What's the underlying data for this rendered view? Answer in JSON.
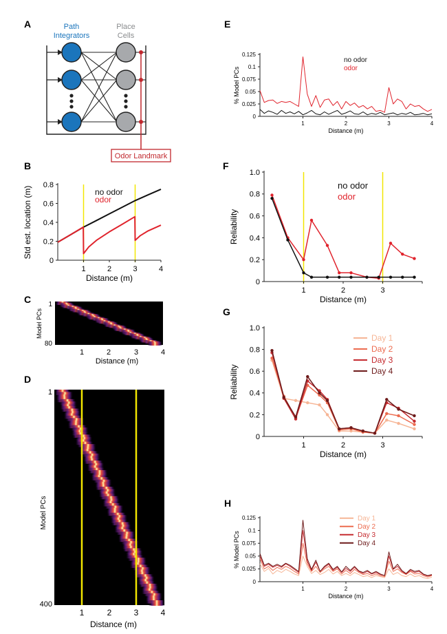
{
  "colors": {
    "black": "#111111",
    "red": "#e0232c",
    "dark_red": "#c1272d",
    "blue": "#1b75bc",
    "gray": "#a7a9ac",
    "yellow": "#f2e600",
    "day1": "#f6b595",
    "day2": "#ec6b4f",
    "day3": "#c52a2f",
    "day4": "#6d1a1a"
  },
  "panel_A": {
    "letter": "A",
    "path_label_1": "Path",
    "path_label_2": "Integrators",
    "place_label_1": "Place",
    "place_label_2": "Cells",
    "odor_box": "Odor Landmark"
  },
  "panel_C_meta": {
    "letter": "C",
    "xlabel": "Distance (m)",
    "ylabel": "Model PCs",
    "ytop": "1",
    "ybottom": "80",
    "ticks": [
      "1",
      "2",
      "3",
      "4"
    ]
  },
  "panel_D_meta": {
    "letter": "D",
    "xlabel": "Distance (m)",
    "ylabel": "Model PCs",
    "ytop": "1",
    "ybottom": "400",
    "ticks": [
      "1",
      "2",
      "3",
      "4"
    ]
  },
  "chart_data": [
    {
      "panel": "B",
      "type": "line",
      "xlabel": "Distance (m)",
      "ylabel": "Std est. location (m)",
      "xlim": [
        0,
        4
      ],
      "ylim": [
        0,
        0.8
      ],
      "xticks": [
        1,
        2,
        3,
        4
      ],
      "yticks": [
        0,
        0.2,
        0.4,
        0.6,
        0.8
      ],
      "vlines": [
        1,
        3
      ],
      "legend": [
        "no odor",
        "odor"
      ],
      "series": [
        {
          "name": "no odor",
          "color": "black",
          "x": [
            0,
            0.5,
            1,
            1.5,
            2,
            2.5,
            3,
            3.5,
            4
          ],
          "y": [
            0.19,
            0.27,
            0.35,
            0.42,
            0.49,
            0.56,
            0.63,
            0.69,
            0.75
          ]
        },
        {
          "name": "odor",
          "color": "red",
          "x": [
            0,
            0.5,
            0.99,
            1.0,
            1.2,
            1.5,
            2.0,
            2.5,
            2.99,
            3.0,
            3.2,
            3.5,
            4.0
          ],
          "y": [
            0.19,
            0.27,
            0.35,
            0.07,
            0.14,
            0.21,
            0.3,
            0.38,
            0.46,
            0.21,
            0.26,
            0.31,
            0.37
          ]
        }
      ]
    },
    {
      "panel": "E",
      "type": "line",
      "xlabel": "Distance (m)",
      "ylabel": "% Model PCs",
      "xlim": [
        0,
        4
      ],
      "ylim": [
        0,
        0.125
      ],
      "xticks": [
        1,
        2,
        3,
        4
      ],
      "yticks": [
        0,
        0.025,
        0.05,
        0.075,
        0.1,
        0.125
      ],
      "legend": [
        "no odor",
        "odor"
      ],
      "series": [
        {
          "name": "no odor",
          "color": "black",
          "x": [
            0,
            0.1,
            0.2,
            0.3,
            0.4,
            0.5,
            0.6,
            0.7,
            0.8,
            0.9,
            1.0,
            1.1,
            1.2,
            1.3,
            1.4,
            1.5,
            1.6,
            1.7,
            1.8,
            1.9,
            2.0,
            2.1,
            2.2,
            2.3,
            2.4,
            2.5,
            2.6,
            2.7,
            2.8,
            2.9,
            3.0,
            3.1,
            3.2,
            3.3,
            3.4,
            3.5,
            3.6,
            3.7,
            3.8,
            3.9,
            4.0
          ],
          "y": [
            0.014,
            0.006,
            0.011,
            0.008,
            0.004,
            0.012,
            0.006,
            0.009,
            0.005,
            0.01,
            0.003,
            0.007,
            0.012,
            0.005,
            0.003,
            0.009,
            0.004,
            0.008,
            0.012,
            0.004,
            0.007,
            0.011,
            0.005,
            0.004,
            0.009,
            0.003,
            0.006,
            0.004,
            0.008,
            0.003,
            0.005,
            0.007,
            0.003,
            0.006,
            0.004,
            0.008,
            0.003,
            0.004,
            0.006,
            0.003,
            0.005
          ]
        },
        {
          "name": "odor",
          "color": "red",
          "x": [
            0,
            0.1,
            0.2,
            0.3,
            0.4,
            0.5,
            0.6,
            0.7,
            0.8,
            0.9,
            1.0,
            1.1,
            1.2,
            1.3,
            1.4,
            1.5,
            1.6,
            1.7,
            1.8,
            1.9,
            2.0,
            2.1,
            2.2,
            2.3,
            2.4,
            2.5,
            2.6,
            2.7,
            2.8,
            2.9,
            3.0,
            3.1,
            3.2,
            3.3,
            3.4,
            3.5,
            3.6,
            3.7,
            3.8,
            3.9,
            4.0
          ],
          "y": [
            0.052,
            0.028,
            0.032,
            0.033,
            0.026,
            0.03,
            0.028,
            0.03,
            0.025,
            0.02,
            0.12,
            0.045,
            0.02,
            0.042,
            0.018,
            0.033,
            0.035,
            0.022,
            0.03,
            0.015,
            0.03,
            0.022,
            0.027,
            0.018,
            0.022,
            0.015,
            0.02,
            0.01,
            0.012,
            0.008,
            0.058,
            0.025,
            0.035,
            0.03,
            0.015,
            0.025,
            0.02,
            0.022,
            0.015,
            0.01,
            0.014
          ]
        }
      ]
    },
    {
      "panel": "F",
      "type": "line",
      "xlabel": "Distance (m)",
      "ylabel": "Reliability",
      "xlim": [
        0,
        4
      ],
      "ylim": [
        0,
        1
      ],
      "xticks": [
        1,
        2,
        3,
        4
      ],
      "xtick_labels": [
        "1",
        "2",
        "3",
        ""
      ],
      "yticks": [
        0,
        0.2,
        0.4,
        0.6,
        0.8,
        1.0
      ],
      "ytick_labels": [
        "0",
        "0.2",
        "0.4",
        "0.6",
        "0.8",
        "1.0"
      ],
      "vlines": [
        1,
        3
      ],
      "legend": [
        "no odor",
        "odor"
      ],
      "series": [
        {
          "name": "odor",
          "color": "red",
          "markers": true,
          "x": [
            0.2,
            0.6,
            1.0,
            1.2,
            1.6,
            1.9,
            2.2,
            2.6,
            2.9,
            3.2,
            3.5,
            3.8
          ],
          "y": [
            0.79,
            0.4,
            0.2,
            0.56,
            0.33,
            0.08,
            0.08,
            0.04,
            0.03,
            0.35,
            0.25,
            0.21
          ]
        },
        {
          "name": "no odor",
          "color": "black",
          "markers": true,
          "x": [
            0.2,
            0.6,
            1.0,
            1.2,
            1.6,
            1.9,
            2.2,
            2.6,
            2.9,
            3.2,
            3.5,
            3.8
          ],
          "y": [
            0.76,
            0.38,
            0.08,
            0.04,
            0.04,
            0.04,
            0.04,
            0.04,
            0.04,
            0.04,
            0.04,
            0.04
          ]
        }
      ]
    },
    {
      "panel": "G",
      "type": "line",
      "xlabel": "Distance (m)",
      "ylabel": "Reliability",
      "xlim": [
        0,
        4
      ],
      "ylim": [
        0,
        1
      ],
      "xticks": [
        1,
        2,
        3,
        4
      ],
      "xtick_labels": [
        "1",
        "2",
        "3",
        ""
      ],
      "yticks": [
        0,
        0.2,
        0.4,
        0.6,
        0.8,
        1.0
      ],
      "ytick_labels": [
        "0",
        "0.2",
        "0.4",
        "0.6",
        "0.8",
        "1.0"
      ],
      "legend": [
        "Day 1",
        "Day 2",
        "Day 3",
        "Day 4"
      ],
      "series": [
        {
          "name": "Day 1",
          "color": "day1",
          "markers": true,
          "x": [
            0.2,
            0.5,
            0.8,
            1.1,
            1.4,
            1.6,
            1.9,
            2.2,
            2.5,
            2.8,
            3.1,
            3.4,
            3.8
          ],
          "y": [
            0.7,
            0.35,
            0.33,
            0.31,
            0.29,
            0.2,
            0.05,
            0.05,
            0.04,
            0.03,
            0.15,
            0.12,
            0.07
          ]
        },
        {
          "name": "Day 2",
          "color": "day2",
          "markers": true,
          "x": [
            0.2,
            0.5,
            0.8,
            1.1,
            1.4,
            1.6,
            1.9,
            2.2,
            2.5,
            2.8,
            3.1,
            3.4,
            3.8
          ],
          "y": [
            0.72,
            0.37,
            0.17,
            0.47,
            0.38,
            0.31,
            0.06,
            0.07,
            0.04,
            0.03,
            0.21,
            0.19,
            0.11
          ]
        },
        {
          "name": "Day 3",
          "color": "day3",
          "markers": true,
          "x": [
            0.2,
            0.5,
            0.8,
            1.1,
            1.4,
            1.6,
            1.9,
            2.2,
            2.5,
            2.8,
            3.1,
            3.4,
            3.8
          ],
          "y": [
            0.77,
            0.35,
            0.16,
            0.51,
            0.42,
            0.34,
            0.07,
            0.08,
            0.05,
            0.03,
            0.31,
            0.26,
            0.14
          ]
        },
        {
          "name": "Day 4",
          "color": "day4",
          "markers": true,
          "x": [
            0.2,
            0.5,
            0.8,
            1.1,
            1.4,
            1.6,
            1.9,
            2.2,
            2.5,
            2.8,
            3.1,
            3.4,
            3.8
          ],
          "y": [
            0.79,
            0.36,
            0.18,
            0.55,
            0.4,
            0.33,
            0.07,
            0.08,
            0.05,
            0.03,
            0.34,
            0.25,
            0.19
          ]
        }
      ]
    },
    {
      "panel": "H",
      "type": "line",
      "xlabel": "Distance (m)",
      "ylabel": "% Model PCs",
      "xlim": [
        0,
        4
      ],
      "ylim": [
        0,
        0.125
      ],
      "xticks": [
        1,
        2,
        3,
        4
      ],
      "yticks": [
        0,
        0.025,
        0.05,
        0.075,
        0.1,
        0.125
      ],
      "legend": [
        "Day 1",
        "Day 2",
        "Day 3",
        "Day 4"
      ],
      "series": [
        {
          "name": "Day 1",
          "color": "day1",
          "x": [
            0,
            0.1,
            0.2,
            0.3,
            0.4,
            0.5,
            0.6,
            0.7,
            0.8,
            0.9,
            1.0,
            1.1,
            1.2,
            1.3,
            1.4,
            1.5,
            1.6,
            1.7,
            1.8,
            1.9,
            2.0,
            2.1,
            2.2,
            2.3,
            2.4,
            2.5,
            2.6,
            2.7,
            2.8,
            2.9,
            3.0,
            3.1,
            3.2,
            3.3,
            3.4,
            3.5,
            3.6,
            3.7,
            3.8,
            3.9,
            4.0
          ],
          "y": [
            0.035,
            0.02,
            0.026,
            0.015,
            0.022,
            0.018,
            0.024,
            0.02,
            0.015,
            0.012,
            0.05,
            0.03,
            0.016,
            0.022,
            0.014,
            0.018,
            0.024,
            0.015,
            0.02,
            0.012,
            0.016,
            0.012,
            0.018,
            0.014,
            0.01,
            0.012,
            0.008,
            0.012,
            0.01,
            0.008,
            0.025,
            0.014,
            0.018,
            0.012,
            0.01,
            0.015,
            0.01,
            0.012,
            0.008,
            0.006,
            0.009
          ]
        },
        {
          "name": "Day 2",
          "color": "day2",
          "x": [
            0,
            0.1,
            0.2,
            0.3,
            0.4,
            0.5,
            0.6,
            0.7,
            0.8,
            0.9,
            1.0,
            1.1,
            1.2,
            1.3,
            1.4,
            1.5,
            1.6,
            1.7,
            1.8,
            1.9,
            2.0,
            2.1,
            2.2,
            2.3,
            2.4,
            2.5,
            2.6,
            2.7,
            2.8,
            2.9,
            3.0,
            3.1,
            3.2,
            3.3,
            3.4,
            3.5,
            3.6,
            3.7,
            3.8,
            3.9,
            4.0
          ],
          "y": [
            0.045,
            0.025,
            0.03,
            0.022,
            0.028,
            0.024,
            0.03,
            0.026,
            0.02,
            0.015,
            0.075,
            0.035,
            0.02,
            0.03,
            0.018,
            0.025,
            0.03,
            0.02,
            0.025,
            0.015,
            0.022,
            0.016,
            0.024,
            0.018,
            0.014,
            0.016,
            0.012,
            0.015,
            0.012,
            0.01,
            0.04,
            0.02,
            0.025,
            0.018,
            0.014,
            0.02,
            0.015,
            0.016,
            0.012,
            0.009,
            0.012
          ]
        },
        {
          "name": "Day 3",
          "color": "day3",
          "x": [
            0,
            0.1,
            0.2,
            0.3,
            0.4,
            0.5,
            0.6,
            0.7,
            0.8,
            0.9,
            1.0,
            1.1,
            1.2,
            1.3,
            1.4,
            1.5,
            1.6,
            1.7,
            1.8,
            1.9,
            2.0,
            2.1,
            2.2,
            2.3,
            2.4,
            2.5,
            2.6,
            2.7,
            2.8,
            2.9,
            3.0,
            3.1,
            3.2,
            3.3,
            3.4,
            3.5,
            3.6,
            3.7,
            3.8,
            3.9,
            4.0
          ],
          "y": [
            0.05,
            0.03,
            0.034,
            0.028,
            0.032,
            0.028,
            0.035,
            0.03,
            0.024,
            0.018,
            0.1,
            0.04,
            0.022,
            0.038,
            0.02,
            0.028,
            0.034,
            0.022,
            0.028,
            0.018,
            0.026,
            0.02,
            0.028,
            0.02,
            0.016,
            0.02,
            0.015,
            0.018,
            0.014,
            0.012,
            0.05,
            0.024,
            0.03,
            0.02,
            0.015,
            0.022,
            0.018,
            0.02,
            0.014,
            0.011,
            0.013
          ]
        },
        {
          "name": "Day 4",
          "color": "day4",
          "x": [
            0,
            0.1,
            0.2,
            0.3,
            0.4,
            0.5,
            0.6,
            0.7,
            0.8,
            0.9,
            1.0,
            1.1,
            1.2,
            1.3,
            1.4,
            1.5,
            1.6,
            1.7,
            1.8,
            1.9,
            2.0,
            2.1,
            2.2,
            2.3,
            2.4,
            2.5,
            2.6,
            2.7,
            2.8,
            2.9,
            3.0,
            3.1,
            3.2,
            3.3,
            3.4,
            3.5,
            3.6,
            3.7,
            3.8,
            3.9,
            4.0
          ],
          "y": [
            0.055,
            0.032,
            0.036,
            0.03,
            0.034,
            0.03,
            0.036,
            0.032,
            0.026,
            0.02,
            0.12,
            0.045,
            0.024,
            0.042,
            0.02,
            0.03,
            0.036,
            0.024,
            0.03,
            0.019,
            0.03,
            0.022,
            0.03,
            0.021,
            0.018,
            0.022,
            0.016,
            0.02,
            0.015,
            0.012,
            0.058,
            0.025,
            0.034,
            0.022,
            0.016,
            0.024,
            0.02,
            0.022,
            0.015,
            0.012,
            0.014
          ]
        }
      ]
    }
  ]
}
